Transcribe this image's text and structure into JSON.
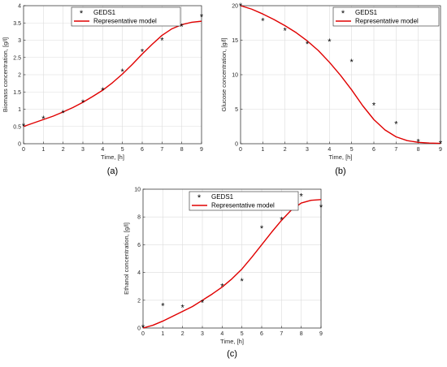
{
  "chart_data": [
    {
      "type": "line",
      "caption": "(a)",
      "xlabel": "Time, [h]",
      "ylabel": "Biomass concentration, [g/l]",
      "xlim": [
        0,
        9
      ],
      "ylim": [
        0,
        4
      ],
      "x_ticks": [
        "0",
        "1",
        "2",
        "3",
        "4",
        "5",
        "6",
        "7",
        "8",
        "9"
      ],
      "y_ticks": [
        "0",
        "0.5",
        "1",
        "1.5",
        "2",
        "2.5",
        "3",
        "3.5",
        "4"
      ],
      "grid": true,
      "legend_position": "top-center",
      "colors": {
        "model": "#e00000",
        "data": "#000000"
      },
      "series": [
        {
          "name": "GEDS1",
          "marker": "*",
          "x": [
            0,
            1,
            2,
            3,
            4,
            5,
            6,
            7,
            8,
            9
          ],
          "y": [
            0.52,
            0.73,
            0.9,
            1.2,
            1.55,
            2.1,
            2.67,
            3.0,
            3.4,
            3.68
          ]
        },
        {
          "name": "Representative model",
          "line": "solid",
          "x": [
            0,
            0.5,
            1,
            1.5,
            2,
            2.5,
            3,
            3.5,
            4,
            4.5,
            5,
            5.5,
            6,
            6.5,
            7,
            7.5,
            8,
            8.5,
            9
          ],
          "y": [
            0.5,
            0.6,
            0.7,
            0.8,
            0.92,
            1.05,
            1.2,
            1.37,
            1.55,
            1.77,
            2.02,
            2.3,
            2.6,
            2.88,
            3.14,
            3.33,
            3.45,
            3.52,
            3.55
          ]
        }
      ]
    },
    {
      "type": "line",
      "caption": "(b)",
      "xlabel": "Time, [h]",
      "ylabel": "Glucose concentration, [g/l]",
      "xlim": [
        0,
        9
      ],
      "ylim": [
        0,
        20
      ],
      "x_ticks": [
        "0",
        "1",
        "2",
        "3",
        "4",
        "5",
        "6",
        "7",
        "8",
        "9"
      ],
      "y_ticks": [
        "0",
        "5",
        "10",
        "15",
        "20"
      ],
      "grid": true,
      "legend_position": "top-right",
      "colors": {
        "model": "#e00000",
        "data": "#000000"
      },
      "series": [
        {
          "name": "GEDS1",
          "marker": "*",
          "x": [
            0,
            1,
            2,
            3,
            4,
            5,
            6,
            7,
            8,
            9
          ],
          "y": [
            20.0,
            17.8,
            16.4,
            14.5,
            14.8,
            11.9,
            5.6,
            2.9,
            0.3,
            0.05
          ]
        },
        {
          "name": "Representative model",
          "line": "solid",
          "x": [
            0,
            0.5,
            1,
            1.5,
            2,
            2.5,
            3,
            3.5,
            4,
            4.5,
            5,
            5.5,
            6,
            6.5,
            7,
            7.5,
            8,
            8.5,
            9
          ],
          "y": [
            20.0,
            19.5,
            18.8,
            18.0,
            17.1,
            16.1,
            14.9,
            13.5,
            11.8,
            9.9,
            7.8,
            5.5,
            3.5,
            2.0,
            1.0,
            0.45,
            0.2,
            0.1,
            0.05
          ]
        }
      ]
    },
    {
      "type": "line",
      "caption": "(c)",
      "xlabel": "Time, [h]",
      "ylabel": "Ethanol concentration, [g/l]",
      "xlim": [
        0,
        9
      ],
      "ylim": [
        0,
        10
      ],
      "x_ticks": [
        "0",
        "1",
        "2",
        "3",
        "4",
        "5",
        "6",
        "7",
        "8",
        "9"
      ],
      "y_ticks": [
        "0",
        "2",
        "4",
        "6",
        "8",
        "10"
      ],
      "grid": true,
      "legend_position": "top-center",
      "colors": {
        "model": "#e00000",
        "data": "#000000"
      },
      "series": [
        {
          "name": "GEDS1",
          "marker": "*",
          "x": [
            0,
            1,
            2,
            3,
            4,
            5,
            6,
            7,
            8,
            9
          ],
          "y": [
            0.05,
            1.6,
            1.5,
            1.85,
            3.0,
            3.4,
            7.2,
            7.8,
            9.5,
            8.7
          ]
        },
        {
          "name": "Representative model",
          "line": "solid",
          "x": [
            0,
            0.5,
            1,
            1.5,
            2,
            2.5,
            3,
            3.5,
            4,
            4.5,
            5,
            5.5,
            6,
            6.5,
            7,
            7.5,
            8,
            8.5,
            9
          ],
          "y": [
            0.0,
            0.2,
            0.5,
            0.85,
            1.2,
            1.55,
            2.0,
            2.45,
            2.95,
            3.55,
            4.25,
            5.1,
            6.0,
            6.9,
            7.75,
            8.5,
            9.0,
            9.2,
            9.25
          ]
        }
      ]
    }
  ]
}
